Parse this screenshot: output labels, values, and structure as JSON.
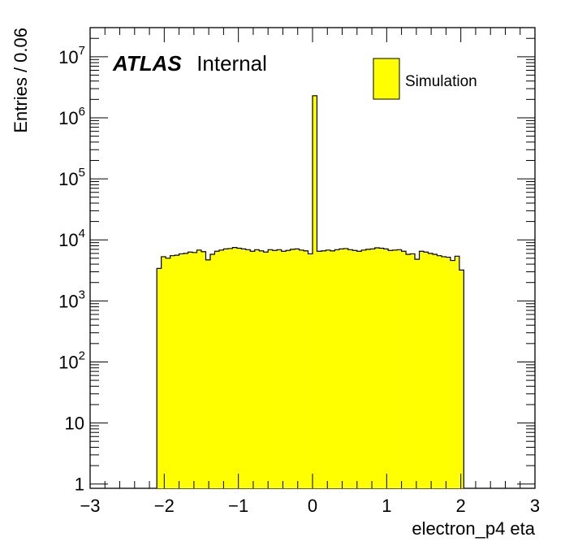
{
  "chart_data": {
    "type": "bar",
    "histogram": true,
    "x_range": [
      -3,
      3
    ],
    "ylim": [
      0.85,
      30000000
    ],
    "y_scale": "log",
    "xlabel": "electron_p4 eta",
    "ylabel": "Entries / 0.06",
    "x_ticks": [
      "−3",
      "−2",
      "−1",
      "0",
      "1",
      "2",
      "3"
    ],
    "y_ticks": [
      {
        "base": "1",
        "exp": ""
      },
      {
        "base": "10",
        "exp": ""
      },
      {
        "base": "10",
        "exp": "2"
      },
      {
        "base": "10",
        "exp": "3"
      },
      {
        "base": "10",
        "exp": "4"
      },
      {
        "base": "10",
        "exp": "5"
      },
      {
        "base": "10",
        "exp": "6"
      },
      {
        "base": "10",
        "exp": "7"
      }
    ],
    "series": [
      {
        "name": "Simulation",
        "color": "#ffff00",
        "bin_width": 0.06,
        "bin_start": -2.1,
        "values": [
          3400,
          5300,
          5000,
          5500,
          5600,
          5900,
          6000,
          6300,
          6200,
          6800,
          6400,
          4700,
          5800,
          6500,
          6800,
          7100,
          7200,
          7500,
          7300,
          7100,
          6900,
          6500,
          6900,
          6600,
          6300,
          6900,
          6700,
          6900,
          6500,
          6700,
          7000,
          7100,
          6800,
          6600,
          5900,
          2300000,
          6500,
          6600,
          6800,
          6600,
          6900,
          7100,
          7200,
          6900,
          6700,
          6500,
          6800,
          7000,
          7100,
          7400,
          7300,
          7100,
          6700,
          6800,
          6900,
          6500,
          5800,
          5900,
          4800,
          6500,
          6300,
          6000,
          5800,
          5500,
          5300,
          5200,
          4600,
          5400,
          3200
        ]
      }
    ],
    "legend": {
      "entries": [
        "Simulation"
      ],
      "placement": "top-right"
    },
    "annotation": {
      "experiment": "ATLAS",
      "status": "Internal"
    }
  }
}
